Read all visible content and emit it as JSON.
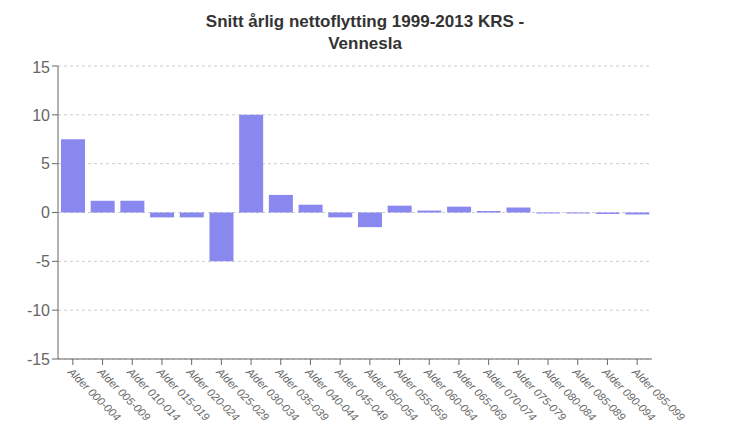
{
  "chart_data": {
    "type": "bar",
    "title": "Snitt årlig nettoflytting  1999-2013 KRS -\nVennesla",
    "categories": [
      "Alder 000-004",
      "Alder 005-009",
      "Alder 010-014",
      "Alder 015-019",
      "Alder 020-024",
      "Alder 025-029",
      "Alder 030-034",
      "Alder 035-039",
      "Alder 040-044",
      "Alder 045-049",
      "Alder 050-054",
      "Alder 055-059",
      "Alder 060-064",
      "Alder 065-069",
      "Alder 070-074",
      "Alder 075-079",
      "Alder 080-084",
      "Alder 085-089",
      "Alder 090-094",
      "Alder 095-099"
    ],
    "values": [
      7.5,
      1.2,
      1.2,
      -0.5,
      -0.5,
      -5.0,
      10.0,
      1.8,
      0.8,
      -0.5,
      -1.5,
      0.7,
      0.2,
      0.6,
      0.15,
      0.5,
      -0.1,
      -0.1,
      -0.15,
      -0.2
    ],
    "color": "#8888ee",
    "ylim": [
      -15,
      15
    ],
    "yticks": [
      -15,
      -10,
      -5,
      0,
      5,
      10,
      15
    ],
    "grid": true
  }
}
